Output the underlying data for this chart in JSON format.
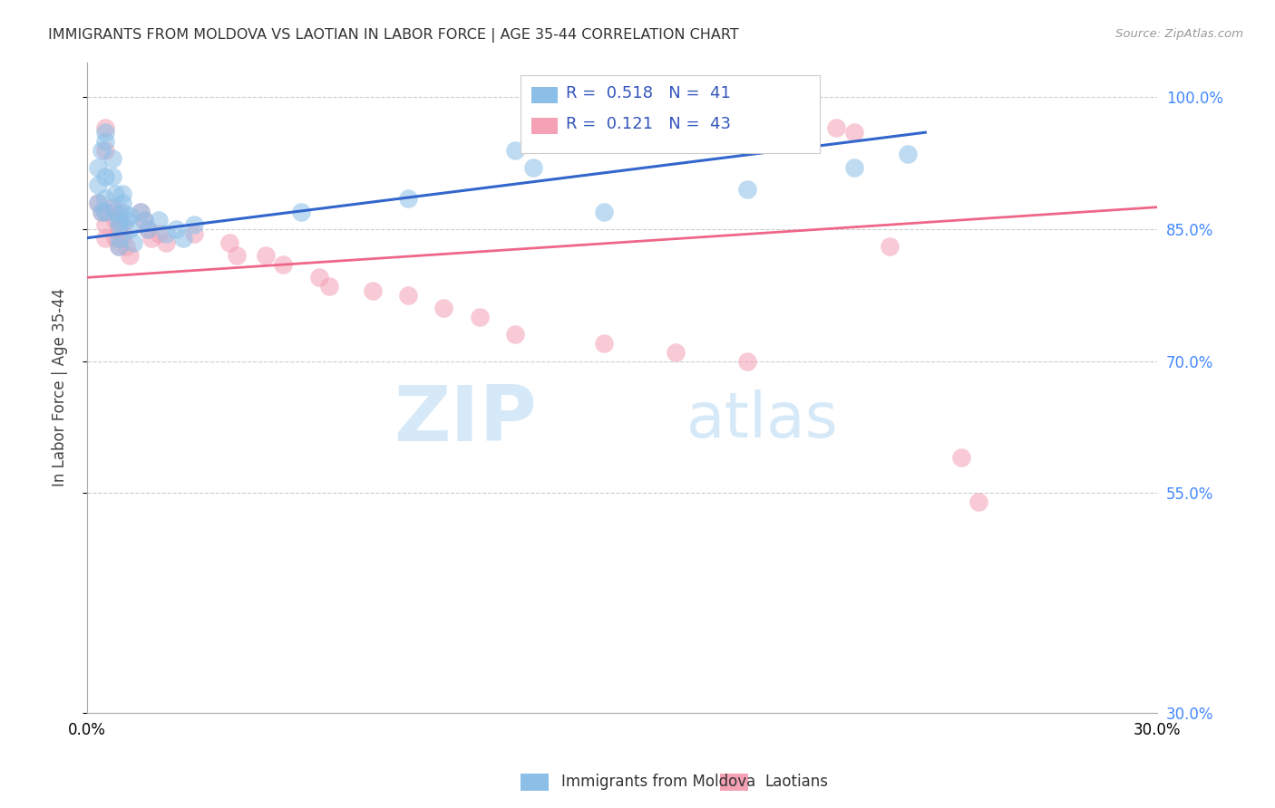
{
  "title": "IMMIGRANTS FROM MOLDOVA VS LAOTIAN IN LABOR FORCE | AGE 35-44 CORRELATION CHART",
  "source": "Source: ZipAtlas.com",
  "ylabel": "In Labor Force | Age 35-44",
  "r_moldova": "0.518",
  "n_moldova": "41",
  "r_laotian": "0.121",
  "n_laotian": "43",
  "xlim": [
    0.0,
    0.3
  ],
  "ylim": [
    0.3,
    1.04
  ],
  "yticks": [
    0.3,
    0.55,
    0.7,
    0.85,
    1.0
  ],
  "ytick_labels": [
    "30.0%",
    "55.0%",
    "70.0%",
    "85.0%",
    "100.0%"
  ],
  "xticks": [
    0.0,
    0.05,
    0.1,
    0.15,
    0.2,
    0.25,
    0.3
  ],
  "xtick_labels": [
    "0.0%",
    "",
    "",
    "",
    "",
    "",
    "30.0%"
  ],
  "color_moldova": "#8bbfe8",
  "color_laotian": "#f4a0b5",
  "line_color_moldova": "#3366cc",
  "line_color_laotian": "#ee6688",
  "legend_moldova": "Immigrants from Moldova",
  "legend_laotian": "Laotians",
  "watermark_zip": "ZIP",
  "watermark_atlas": "atlas",
  "moldova_x": [
    0.003,
    0.003,
    0.003,
    0.004,
    0.004,
    0.005,
    0.005,
    0.005,
    0.005,
    0.005,
    0.007,
    0.007,
    0.008,
    0.008,
    0.009,
    0.009,
    0.009,
    0.009,
    0.01,
    0.01,
    0.01,
    0.011,
    0.012,
    0.012,
    0.013,
    0.015,
    0.016,
    0.017,
    0.02,
    0.022,
    0.025,
    0.027,
    0.03,
    0.06,
    0.09,
    0.12,
    0.125,
    0.145,
    0.185,
    0.215,
    0.23
  ],
  "moldova_y": [
    0.88,
    0.9,
    0.92,
    0.94,
    0.87,
    0.96,
    0.95,
    0.91,
    0.885,
    0.87,
    0.93,
    0.91,
    0.89,
    0.87,
    0.86,
    0.855,
    0.84,
    0.83,
    0.89,
    0.88,
    0.87,
    0.86,
    0.865,
    0.85,
    0.835,
    0.87,
    0.86,
    0.85,
    0.86,
    0.845,
    0.85,
    0.84,
    0.855,
    0.87,
    0.885,
    0.94,
    0.92,
    0.87,
    0.895,
    0.92,
    0.935
  ],
  "laotian_x": [
    0.003,
    0.004,
    0.005,
    0.005,
    0.005,
    0.005,
    0.005,
    0.007,
    0.008,
    0.008,
    0.009,
    0.009,
    0.009,
    0.01,
    0.01,
    0.011,
    0.012,
    0.015,
    0.016,
    0.017,
    0.018,
    0.02,
    0.022,
    0.03,
    0.04,
    0.042,
    0.05,
    0.055,
    0.065,
    0.068,
    0.08,
    0.09,
    0.1,
    0.11,
    0.12,
    0.145,
    0.165,
    0.185,
    0.21,
    0.215,
    0.225,
    0.245,
    0.25
  ],
  "laotian_y": [
    0.88,
    0.87,
    0.965,
    0.94,
    0.87,
    0.855,
    0.84,
    0.875,
    0.86,
    0.84,
    0.87,
    0.85,
    0.83,
    0.855,
    0.84,
    0.83,
    0.82,
    0.87,
    0.86,
    0.85,
    0.84,
    0.845,
    0.835,
    0.845,
    0.835,
    0.82,
    0.82,
    0.81,
    0.795,
    0.785,
    0.78,
    0.775,
    0.76,
    0.75,
    0.73,
    0.72,
    0.71,
    0.7,
    0.965,
    0.96,
    0.83,
    0.59,
    0.54
  ],
  "moldova_line_x": [
    0.0,
    0.235
  ],
  "moldova_line_y": [
    0.84,
    0.96
  ],
  "laotian_line_x": [
    0.0,
    0.3
  ],
  "laotian_line_y": [
    0.795,
    0.875
  ]
}
